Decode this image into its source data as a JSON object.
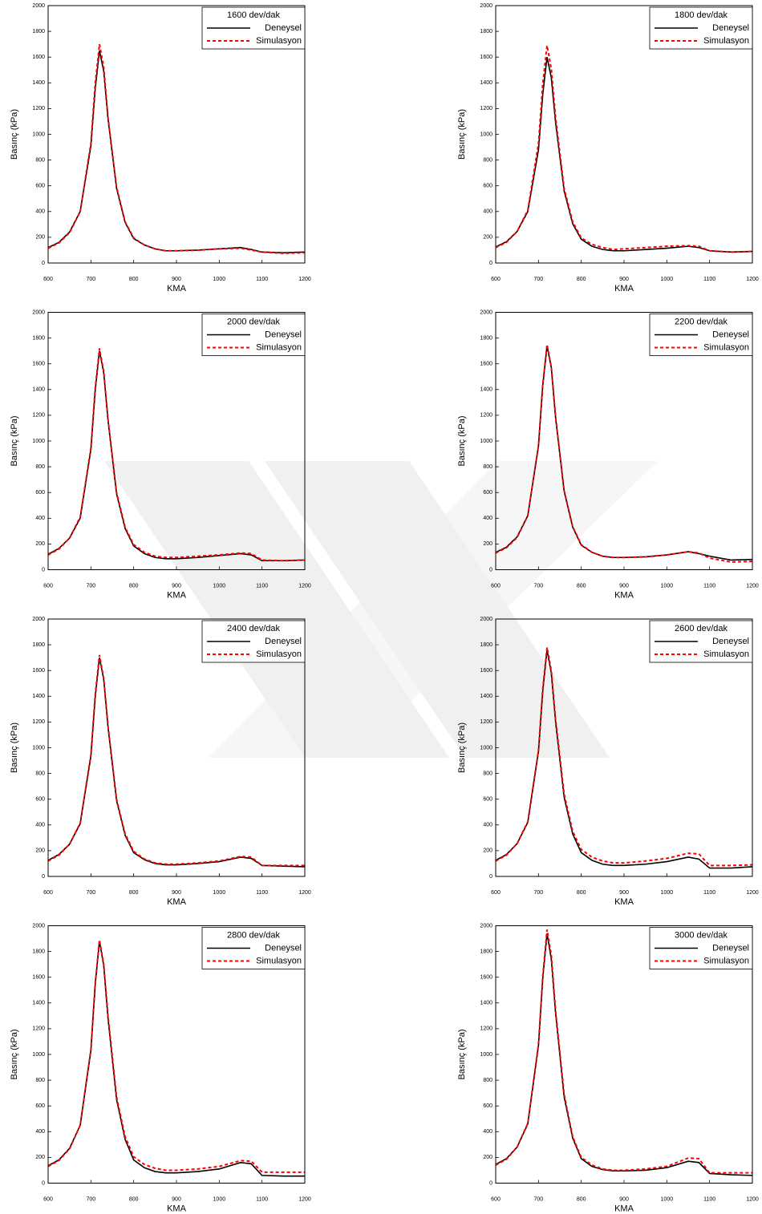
{
  "chart_data": [
    {
      "type": "line",
      "title": "1600 dev/dak",
      "xlabel": "KMA",
      "ylabel": "Basınç (kPa)",
      "legend": "upper right",
      "xlim": [
        600,
        1200
      ],
      "xticks": [
        600,
        700,
        800,
        900,
        1000,
        1100,
        1200
      ],
      "ylim": [
        0,
        2000
      ],
      "yticks": [
        0,
        200,
        400,
        600,
        800,
        1000,
        1200,
        1400,
        1600,
        1800,
        2000
      ],
      "x": [
        600,
        625,
        650,
        675,
        700,
        710,
        720,
        730,
        740,
        760,
        780,
        800,
        825,
        850,
        875,
        900,
        950,
        1000,
        1050,
        1075,
        1100,
        1150,
        1200
      ],
      "series": [
        {
          "name": "Deneysel",
          "color": "#000000",
          "values": [
            120,
            160,
            240,
            400,
            910,
            1350,
            1650,
            1490,
            1120,
            580,
            315,
            190,
            140,
            110,
            95,
            95,
            100,
            110,
            120,
            105,
            85,
            80,
            85
          ]
        },
        {
          "name": "Simulasyon",
          "color": "#ff0000",
          "values": [
            115,
            155,
            235,
            400,
            930,
            1390,
            1700,
            1520,
            1130,
            590,
            320,
            195,
            140,
            110,
            95,
            95,
            100,
            110,
            115,
            100,
            85,
            75,
            80
          ]
        }
      ]
    },
    {
      "type": "line",
      "title": "1800 dev/dak",
      "xlabel": "KMA",
      "ylabel": "Basınç (kPa)",
      "legend": "upper right",
      "xlim": [
        600,
        1200
      ],
      "xticks": [
        600,
        700,
        800,
        900,
        1000,
        1100,
        1200
      ],
      "ylim": [
        0,
        2000
      ],
      "yticks": [
        0,
        200,
        400,
        600,
        800,
        1000,
        1200,
        1400,
        1600,
        1800,
        2000
      ],
      "x": [
        600,
        625,
        650,
        675,
        700,
        710,
        720,
        730,
        740,
        760,
        780,
        800,
        825,
        850,
        875,
        900,
        950,
        1000,
        1050,
        1075,
        1100,
        1150,
        1200
      ],
      "series": [
        {
          "name": "Deneysel",
          "color": "#000000",
          "values": [
            125,
            165,
            245,
            400,
            880,
            1310,
            1600,
            1440,
            1090,
            560,
            305,
            185,
            130,
            105,
            95,
            95,
            105,
            115,
            130,
            120,
            95,
            85,
            90
          ]
        },
        {
          "name": "Simulasyon",
          "color": "#ff0000",
          "values": [
            120,
            160,
            245,
            410,
            930,
            1390,
            1690,
            1510,
            1130,
            580,
            320,
            195,
            145,
            120,
            105,
            110,
            120,
            130,
            135,
            130,
            95,
            85,
            90
          ]
        }
      ]
    },
    {
      "type": "line",
      "title": "2000 dev/dak",
      "xlabel": "KMA",
      "ylabel": "Basınç (kPa)",
      "legend": "upper right",
      "xlim": [
        600,
        1200
      ],
      "xticks": [
        600,
        700,
        800,
        900,
        1000,
        1100,
        1200
      ],
      "ylim": [
        0,
        2000
      ],
      "yticks": [
        0,
        200,
        400,
        600,
        800,
        1000,
        1200,
        1400,
        1600,
        1800,
        2000
      ],
      "x": [
        600,
        625,
        650,
        675,
        700,
        710,
        720,
        730,
        740,
        760,
        780,
        800,
        825,
        850,
        875,
        900,
        950,
        1000,
        1050,
        1075,
        1100,
        1150,
        1200
      ],
      "series": [
        {
          "name": "Deneysel",
          "color": "#000000",
          "values": [
            120,
            165,
            245,
            400,
            935,
            1390,
            1700,
            1530,
            1160,
            590,
            320,
            185,
            125,
            95,
            85,
            85,
            95,
            110,
            125,
            115,
            70,
            70,
            75
          ]
        },
        {
          "name": "Simulasyon",
          "color": "#ff0000",
          "values": [
            115,
            160,
            245,
            410,
            945,
            1410,
            1720,
            1540,
            1170,
            600,
            330,
            195,
            135,
            105,
            95,
            95,
            105,
            115,
            130,
            125,
            75,
            70,
            75
          ]
        }
      ]
    },
    {
      "type": "line",
      "title": "2200 dev/dak",
      "xlabel": "KMA",
      "ylabel": "Basınç (kPa)",
      "legend": "upper right",
      "xlim": [
        600,
        1200
      ],
      "xticks": [
        600,
        700,
        800,
        900,
        1000,
        1100,
        1200
      ],
      "ylim": [
        0,
        2000
      ],
      "yticks": [
        0,
        200,
        400,
        600,
        800,
        1000,
        1200,
        1400,
        1600,
        1800,
        2000
      ],
      "x": [
        600,
        625,
        650,
        675,
        700,
        710,
        720,
        730,
        740,
        760,
        780,
        800,
        825,
        850,
        875,
        900,
        950,
        1000,
        1050,
        1075,
        1100,
        1150,
        1200
      ],
      "series": [
        {
          "name": "Deneysel",
          "color": "#000000",
          "values": [
            135,
            175,
            255,
            420,
            960,
            1430,
            1740,
            1570,
            1180,
            610,
            330,
            190,
            135,
            105,
            95,
            95,
            100,
            115,
            140,
            125,
            105,
            75,
            80
          ]
        },
        {
          "name": "Simulasyon",
          "color": "#ff0000",
          "values": [
            130,
            170,
            250,
            420,
            965,
            1440,
            1750,
            1575,
            1190,
            615,
            335,
            195,
            135,
            105,
            95,
            95,
            100,
            115,
            140,
            130,
            90,
            60,
            65
          ]
        }
      ]
    },
    {
      "type": "line",
      "title": "2400 dev/dak",
      "xlabel": "KMA",
      "ylabel": "Basınç (kPa)",
      "legend": "upper right",
      "xlim": [
        600,
        1200
      ],
      "xticks": [
        600,
        700,
        800,
        900,
        1000,
        1100,
        1200
      ],
      "ylim": [
        0,
        2000
      ],
      "yticks": [
        0,
        200,
        400,
        600,
        800,
        1000,
        1200,
        1400,
        1600,
        1800,
        2000
      ],
      "x": [
        600,
        625,
        650,
        675,
        700,
        710,
        720,
        730,
        740,
        760,
        780,
        800,
        825,
        850,
        875,
        900,
        950,
        1000,
        1050,
        1075,
        1100,
        1150,
        1200
      ],
      "series": [
        {
          "name": "Deneysel",
          "color": "#000000",
          "values": [
            125,
            170,
            250,
            410,
            935,
            1390,
            1700,
            1530,
            1160,
            590,
            320,
            185,
            130,
            100,
            90,
            90,
            100,
            115,
            150,
            140,
            85,
            80,
            75
          ]
        },
        {
          "name": "Simulasyon",
          "color": "#ff0000",
          "values": [
            120,
            165,
            250,
            415,
            945,
            1410,
            1720,
            1540,
            1170,
            600,
            330,
            195,
            135,
            105,
            95,
            95,
            105,
            120,
            155,
            150,
            85,
            85,
            85
          ]
        }
      ]
    },
    {
      "type": "line",
      "title": "2600 dev/dak",
      "xlabel": "KMA",
      "ylabel": "Basınç (kPa)",
      "legend": "upper right",
      "xlim": [
        600,
        1200
      ],
      "xticks": [
        600,
        700,
        800,
        900,
        1000,
        1100,
        1200
      ],
      "ylim": [
        0,
        2000
      ],
      "yticks": [
        0,
        200,
        400,
        600,
        800,
        1000,
        1200,
        1400,
        1600,
        1800,
        2000
      ],
      "x": [
        600,
        625,
        650,
        675,
        700,
        710,
        720,
        730,
        740,
        760,
        780,
        800,
        825,
        850,
        875,
        900,
        950,
        1000,
        1050,
        1075,
        1100,
        1150,
        1200
      ],
      "series": [
        {
          "name": "Deneysel",
          "color": "#000000",
          "values": [
            125,
            170,
            255,
            420,
            970,
            1440,
            1760,
            1580,
            1200,
            615,
            330,
            185,
            125,
            95,
            85,
            85,
            95,
            115,
            150,
            135,
            65,
            65,
            75
          ]
        },
        {
          "name": "Simulasyon",
          "color": "#ff0000",
          "values": [
            120,
            165,
            255,
            425,
            980,
            1460,
            1780,
            1600,
            1220,
            640,
            350,
            210,
            150,
            120,
            105,
            105,
            120,
            140,
            180,
            175,
            85,
            85,
            90
          ]
        }
      ]
    },
    {
      "type": "line",
      "title": "2800 dev/dak",
      "xlabel": "KMA",
      "ylabel": "Basınç (kPa)",
      "legend": "upper right",
      "xlim": [
        600,
        1200
      ],
      "xticks": [
        600,
        700,
        800,
        900,
        1000,
        1100,
        1200
      ],
      "ylim": [
        0,
        2000
      ],
      "yticks": [
        0,
        200,
        400,
        600,
        800,
        1000,
        1200,
        1400,
        1600,
        1800,
        2000
      ],
      "x": [
        600,
        625,
        650,
        675,
        700,
        710,
        720,
        730,
        740,
        760,
        780,
        800,
        825,
        850,
        875,
        900,
        950,
        1000,
        1050,
        1075,
        1100,
        1150,
        1200
      ],
      "series": [
        {
          "name": "Deneysel",
          "color": "#000000",
          "values": [
            135,
            180,
            270,
            450,
            1030,
            1540,
            1880,
            1690,
            1280,
            650,
            340,
            180,
            120,
            90,
            80,
            80,
            90,
            110,
            160,
            150,
            60,
            55,
            55
          ]
        },
        {
          "name": "Simulasyon",
          "color": "#ff0000",
          "values": [
            130,
            175,
            265,
            450,
            1040,
            1550,
            1890,
            1700,
            1300,
            670,
            360,
            205,
            145,
            115,
            100,
            100,
            110,
            130,
            175,
            170,
            85,
            85,
            85
          ]
        }
      ]
    },
    {
      "type": "line",
      "title": "3000 dev/dak",
      "xlabel": "KMA",
      "ylabel": "Basınç (kPa)",
      "legend": "upper right",
      "xlim": [
        600,
        1200
      ],
      "xticks": [
        600,
        700,
        800,
        900,
        1000,
        1100,
        1200
      ],
      "ylim": [
        0,
        2000
      ],
      "yticks": [
        0,
        200,
        400,
        600,
        800,
        1000,
        1200,
        1400,
        1600,
        1800,
        2000
      ],
      "x": [
        600,
        625,
        650,
        675,
        700,
        710,
        720,
        730,
        740,
        760,
        780,
        800,
        825,
        850,
        875,
        900,
        950,
        1000,
        1050,
        1075,
        1100,
        1150,
        1200
      ],
      "series": [
        {
          "name": "Deneysel",
          "color": "#000000",
          "values": [
            145,
            190,
            280,
            460,
            1070,
            1590,
            1940,
            1740,
            1320,
            670,
            350,
            190,
            130,
            105,
            95,
            95,
            100,
            120,
            170,
            160,
            75,
            65,
            60
          ]
        },
        {
          "name": "Simulasyon",
          "color": "#ff0000",
          "values": [
            140,
            185,
            280,
            465,
            1080,
            1610,
            1970,
            1770,
            1340,
            690,
            360,
            200,
            140,
            110,
            100,
            100,
            110,
            130,
            195,
            190,
            80,
            80,
            80
          ]
        }
      ]
    }
  ]
}
